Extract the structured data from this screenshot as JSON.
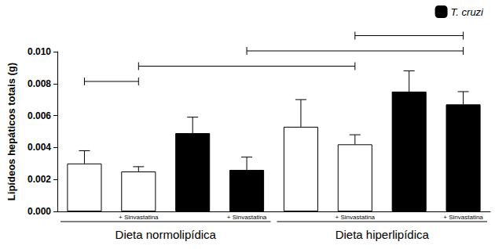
{
  "chart_data": {
    "type": "bar",
    "y_label": "Lipídeos hepáticos totais (g)",
    "categories": [
      null,
      "+ Sinvastatina",
      null,
      "+ Sinvastatina",
      null,
      "+ Sinvastatina",
      null,
      "+ Sinvastatina"
    ],
    "groups": [
      {
        "label": "Dieta normolipídica",
        "from": 0,
        "to": 3
      },
      {
        "label": "Dieta hiperlipídica",
        "from": 4,
        "to": 7
      }
    ],
    "series": [
      {
        "color": "#ffffff",
        "values": [
          0.003,
          0.0025,
          null,
          null,
          0.0053,
          0.0042,
          null,
          null
        ],
        "errors": [
          0.0008,
          0.0003,
          null,
          null,
          0.0017,
          0.0006,
          null,
          null
        ]
      },
      {
        "name": "T. cruzi",
        "color": "#000000",
        "values": [
          null,
          null,
          0.0049,
          0.0026,
          null,
          null,
          0.0075,
          0.0067
        ],
        "errors": [
          null,
          null,
          0.001,
          0.0008,
          null,
          null,
          0.0013,
          0.0008
        ]
      }
    ],
    "significance": [
      [
        0,
        1
      ],
      [
        1,
        5
      ],
      [
        3,
        7
      ],
      [
        5,
        7
      ]
    ],
    "ylim": [
      0,
      0.01
    ],
    "yticks": [
      {
        "value": 0,
        "label": "0.000"
      },
      {
        "value": 0.002,
        "label": "0.002"
      },
      {
        "value": 0.004,
        "label": "0.004"
      },
      {
        "value": 0.006,
        "label": "0.006"
      },
      {
        "value": 0.008,
        "label": "0.008"
      },
      {
        "value": 0.01,
        "label": "0.010"
      }
    ],
    "legend": "top-right",
    "grid": false
  }
}
